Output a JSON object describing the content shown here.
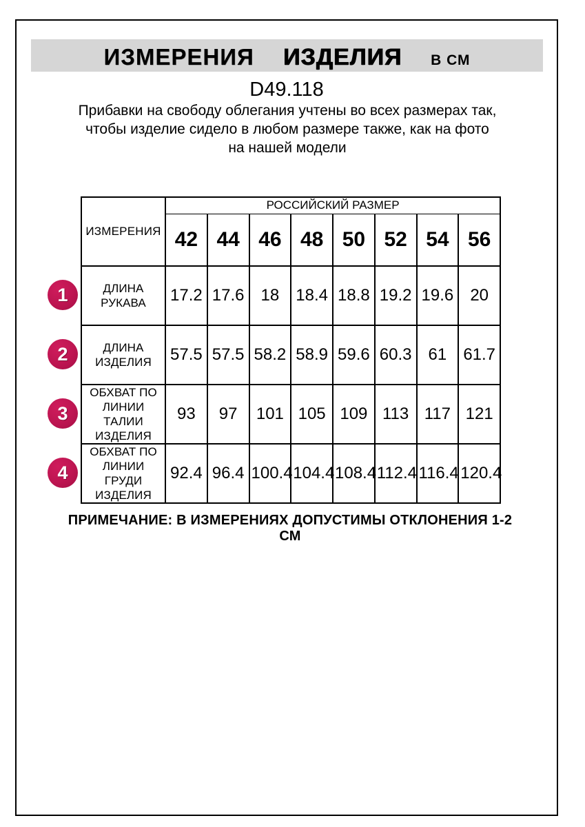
{
  "header": {
    "title_word1": "ИЗМЕРЕНИЯ",
    "title_word2": "ИЗДЕЛИЯ",
    "unit_label": "В СМ",
    "model_code": "D49.118",
    "description": "Прибавки на свободу облегания учтены во всех размерах так, чтобы изделие сидело в любом размере также, как на фото на нашей модели"
  },
  "colors": {
    "badge_accent": "#bd1551",
    "banner_bg": "#d6d6d6",
    "border": "#000000"
  },
  "table": {
    "corner_header": "ИЗМЕРЕНИЯ",
    "group_header": "РОССИЙСКИЙ РАЗМЕР",
    "sizes": [
      "42",
      "44",
      "46",
      "48",
      "50",
      "52",
      "54",
      "56"
    ],
    "rows": [
      {
        "num": "1",
        "label": "ДЛИНА РУКАВА",
        "values": [
          "17.2",
          "17.6",
          "18",
          "18.4",
          "18.8",
          "19.2",
          "19.6",
          "20"
        ]
      },
      {
        "num": "2",
        "label": "ДЛИНА ИЗДЕЛИЯ",
        "values": [
          "57.5",
          "57.5",
          "58.2",
          "58.9",
          "59.6",
          "60.3",
          "61",
          "61.7"
        ]
      },
      {
        "num": "3",
        "label": "ОБХВАТ ПО ЛИНИИ ТАЛИИ ИЗДЕЛИЯ",
        "values": [
          "93",
          "97",
          "101",
          "105",
          "109",
          "113",
          "117",
          "121"
        ]
      },
      {
        "num": "4",
        "label": "ОБХВАТ ПО ЛИНИИ ГРУДИ ИЗДЕЛИЯ",
        "values": [
          "92.4",
          "96.4",
          "100.4",
          "104.4",
          "108.4",
          "112.4",
          "116.4",
          "120.4"
        ]
      }
    ]
  },
  "note": "ПРИМЕЧАНИЕ: В ИЗМЕРЕНИЯХ ДОПУСТИМЫ ОТКЛОНЕНИЯ 1-2 СМ"
}
